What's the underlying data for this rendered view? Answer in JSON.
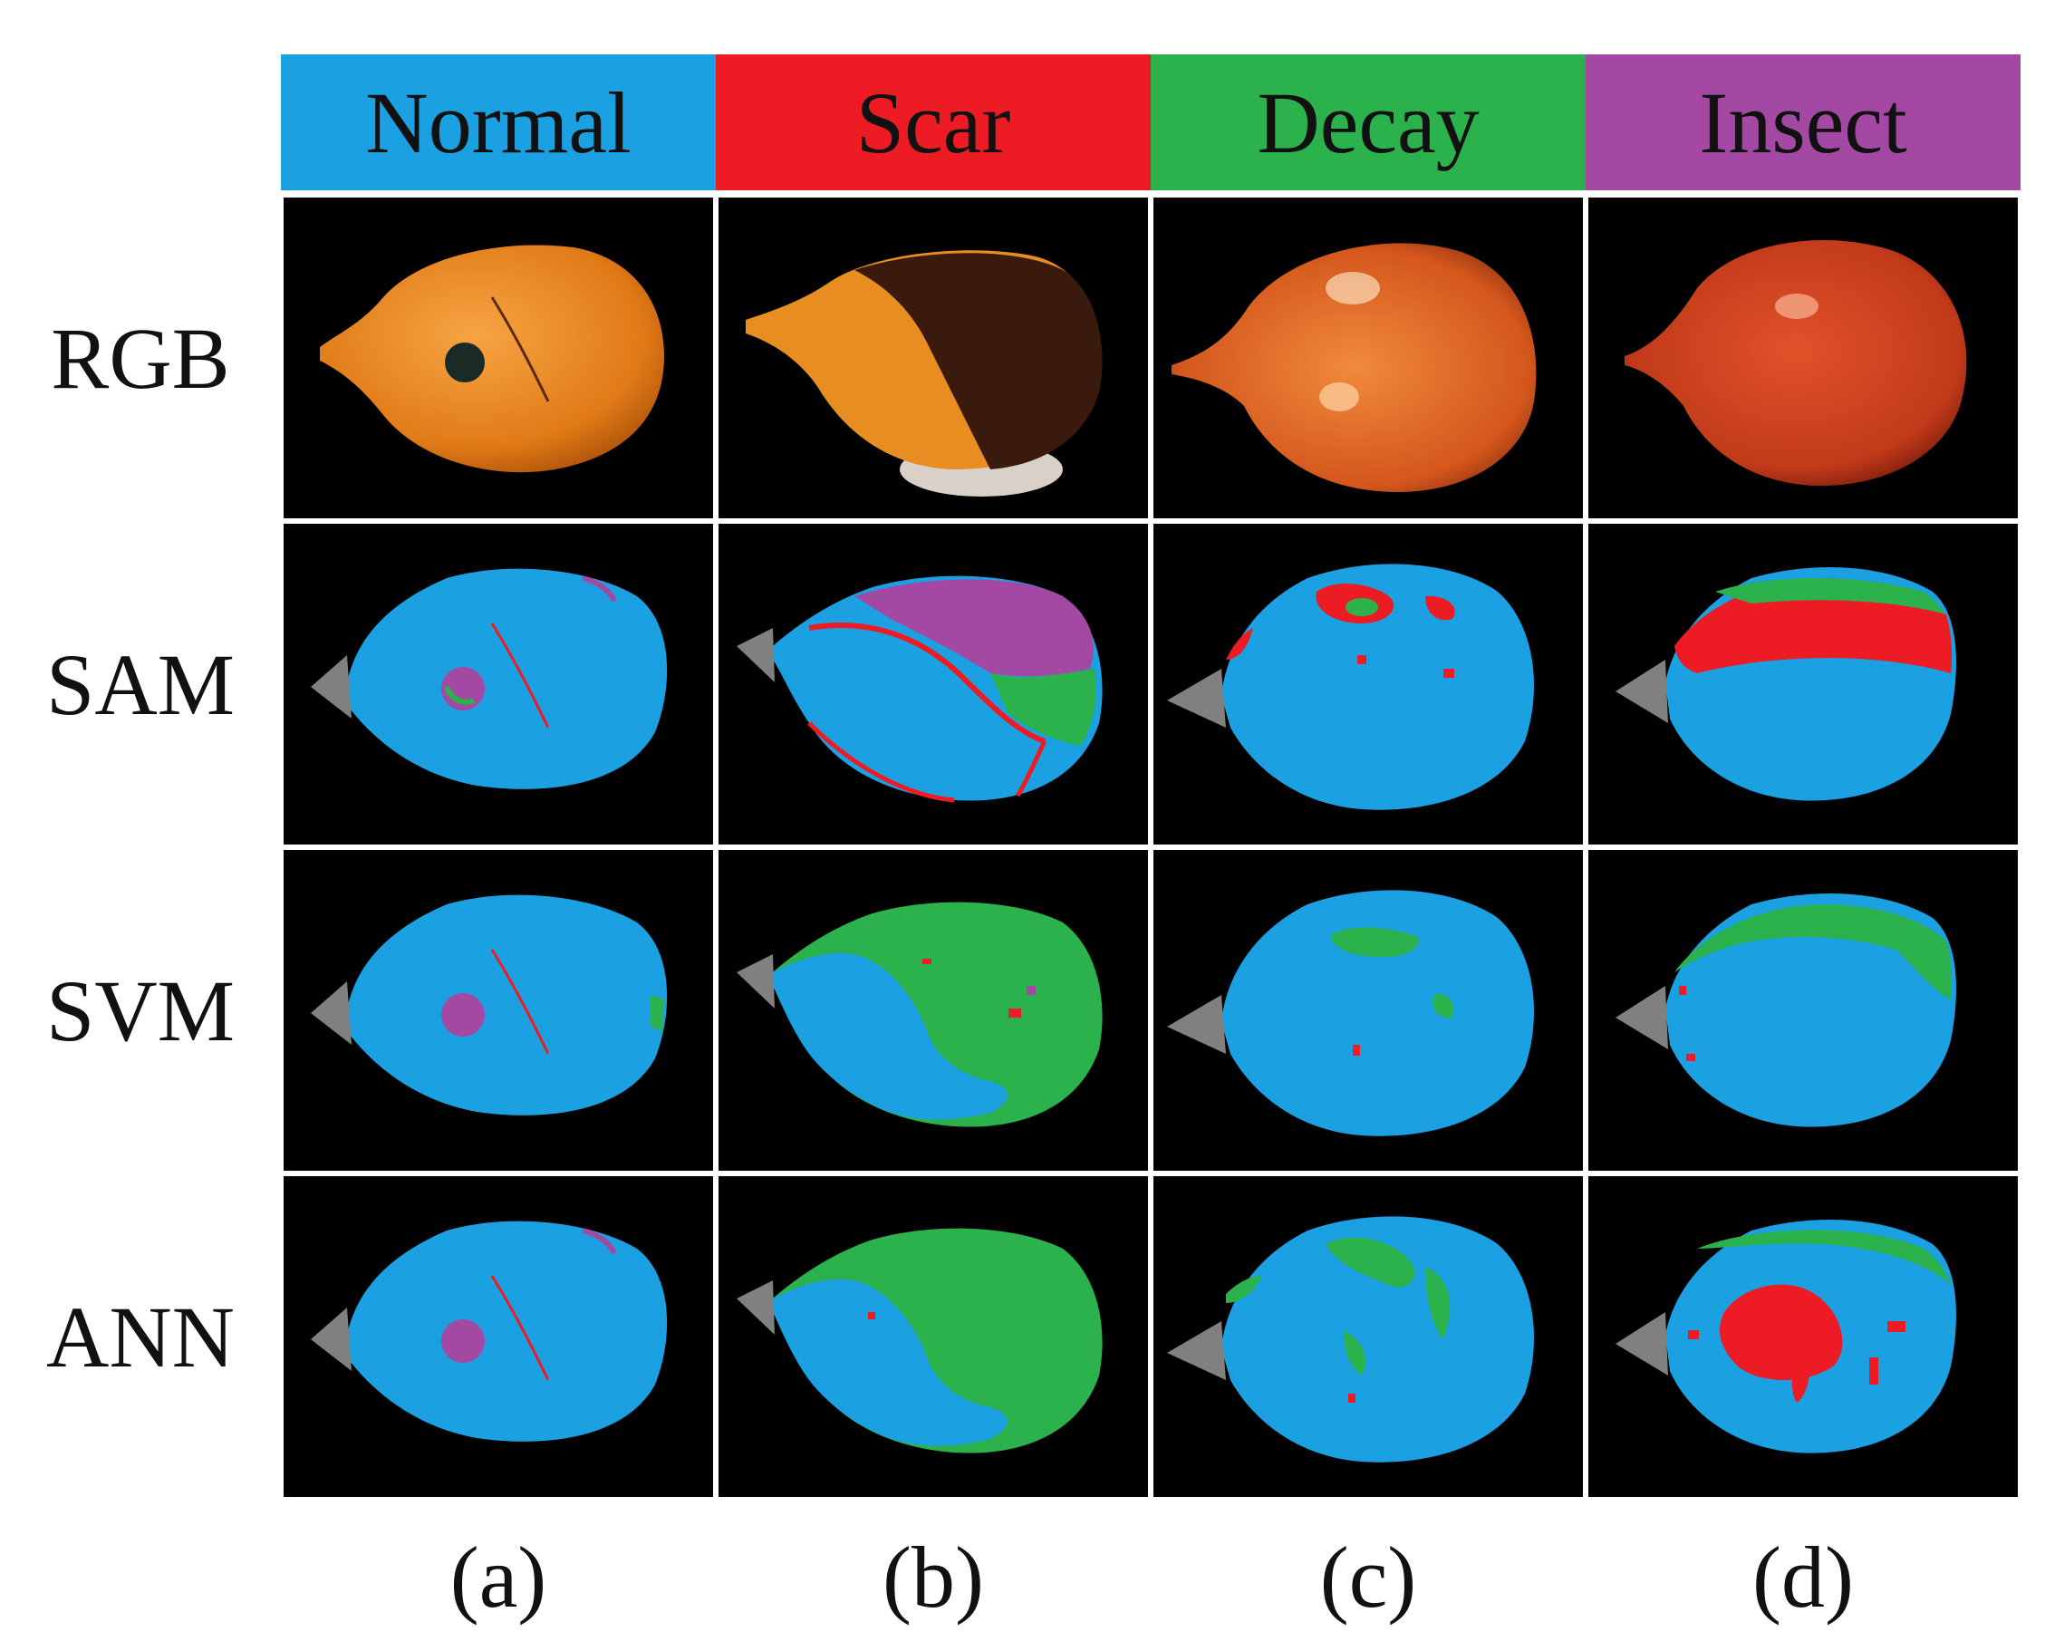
{
  "legend": [
    {
      "label": "Normal",
      "color": "#1ba1e2"
    },
    {
      "label": "Scar",
      "color": "#ed1c24"
    },
    {
      "label": "Decay",
      "color": "#2bb24c"
    },
    {
      "label": "Insect",
      "color": "#a349a4"
    }
  ],
  "rows": [
    "RGB",
    "SAM",
    "SVM",
    "ANN"
  ],
  "columns": [
    "(a)",
    "(b)",
    "(c)",
    "(d)"
  ],
  "background_color": "#b0b0b0",
  "panel_background": "#000000"
}
